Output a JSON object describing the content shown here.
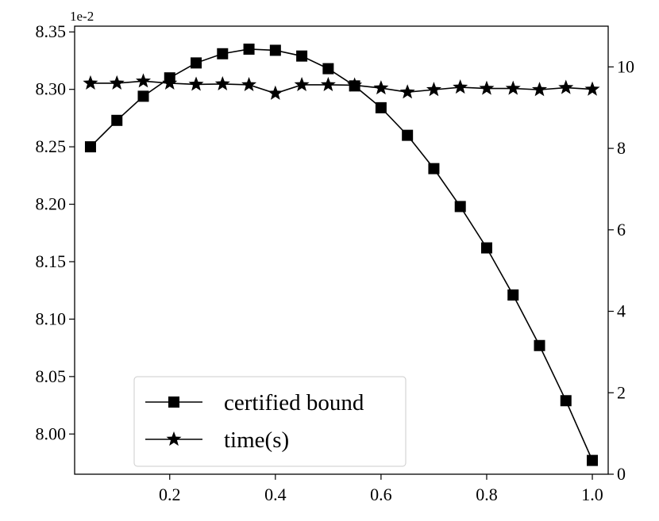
{
  "chart_data": {
    "type": "line",
    "title": "",
    "xlabel": "",
    "ylabel": "",
    "y2label": "",
    "xlim": [
      0.02,
      1.03
    ],
    "ylim": [
      7.965,
      8.355
    ],
    "y2lim": [
      0,
      11
    ],
    "y_offset_text": "1e-2",
    "x_ticks": [
      0.2,
      0.4,
      0.6,
      0.8,
      1.0
    ],
    "x_tick_labels": [
      "0.2",
      "0.4",
      "0.6",
      "0.8",
      "1.0"
    ],
    "y_ticks": [
      8.0,
      8.05,
      8.1,
      8.15,
      8.2,
      8.25,
      8.3,
      8.35
    ],
    "y_tick_labels": [
      "8.00",
      "8.05",
      "8.10",
      "8.15",
      "8.20",
      "8.25",
      "8.30",
      "8.35"
    ],
    "y2_ticks": [
      0,
      2,
      4,
      6,
      8,
      10
    ],
    "y2_tick_labels": [
      "0",
      "2",
      "4",
      "6",
      "8",
      "10"
    ],
    "grid": false,
    "legend_position": "bottom-left",
    "x": [
      0.05,
      0.1,
      0.15,
      0.2,
      0.25,
      0.3,
      0.35,
      0.4,
      0.45,
      0.5,
      0.55,
      0.6,
      0.65,
      0.7,
      0.75,
      0.8,
      0.85,
      0.9,
      0.95,
      1.0
    ],
    "series": [
      {
        "name": "certified bound",
        "axis": "left",
        "marker": "square",
        "values": [
          8.25,
          8.273,
          8.294,
          8.31,
          8.323,
          8.331,
          8.335,
          8.334,
          8.329,
          8.318,
          8.303,
          8.284,
          8.26,
          8.231,
          8.198,
          8.162,
          8.121,
          8.077,
          8.029,
          7.977
        ]
      },
      {
        "name": "time(s)",
        "axis": "right",
        "marker": "star",
        "values": [
          9.6,
          9.6,
          9.65,
          9.6,
          9.57,
          9.58,
          9.56,
          9.35,
          9.56,
          9.56,
          9.55,
          9.48,
          9.38,
          9.44,
          9.5,
          9.47,
          9.47,
          9.44,
          9.49,
          9.45
        ]
      }
    ]
  }
}
